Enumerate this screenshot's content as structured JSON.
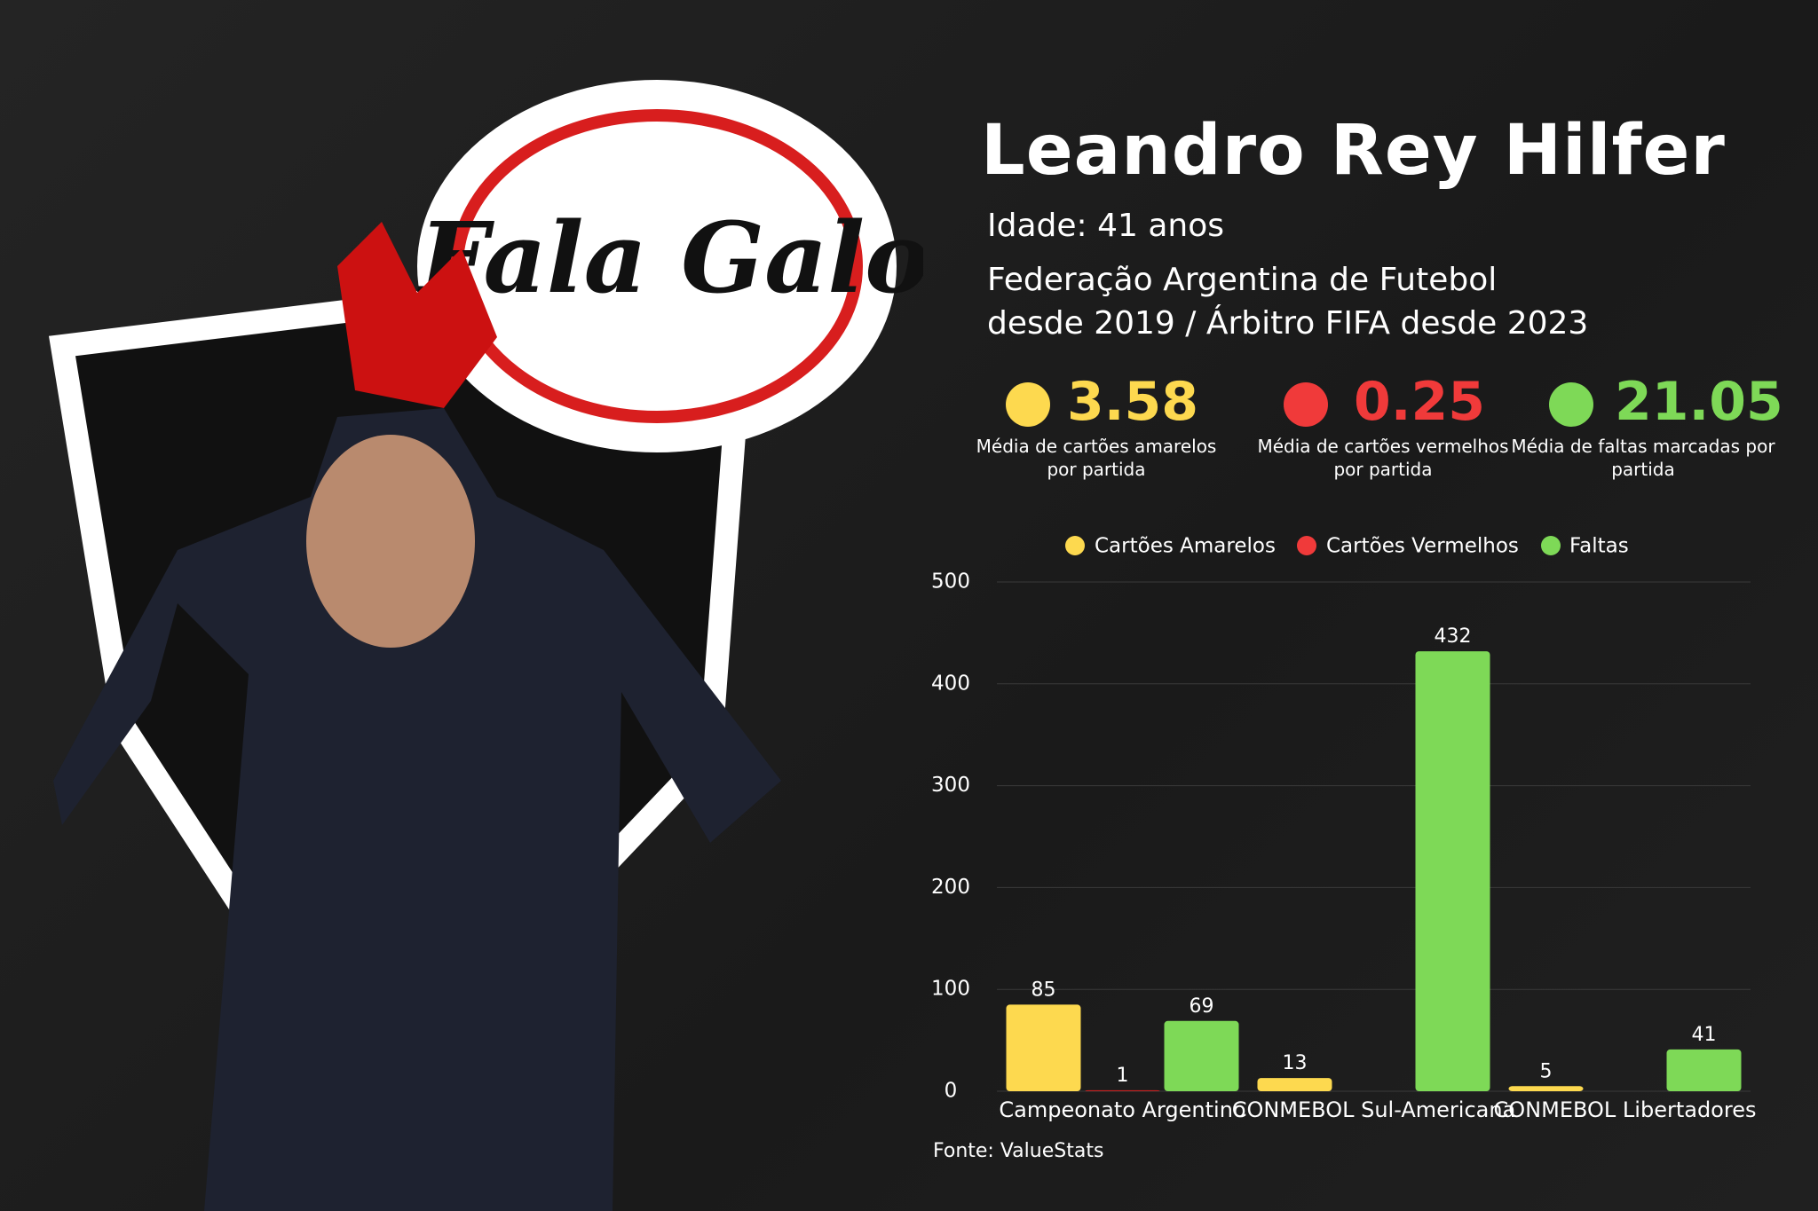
{
  "logo": {
    "text": "Fala Galo"
  },
  "header": {
    "name": "Leandro Rey Hilfer",
    "age": "Idade: 41 anos",
    "bio": [
      "Federação Argentina de Futebol",
      "desde 2019 / Árbitro FIFA desde 2023"
    ]
  },
  "stats": [
    {
      "value": 3.58,
      "caption": "Média de cartões amarelos por partida",
      "color": "#fdd94f"
    },
    {
      "value": 0.25,
      "caption": "Média de cartões vermelhos por partida",
      "color": "#f03a3a"
    },
    {
      "value": 21.05,
      "caption": "Média de faltas marcadas por partida",
      "color": "#7ed957"
    }
  ],
  "chart_data": {
    "type": "bar",
    "categories": [
      "Campeonato Argentino",
      "CONMEBOL Sul-Americana",
      "CONMEBOL Libertadores"
    ],
    "series": [
      {
        "name": "Cartões Amarelos",
        "color": "#fdd94f",
        "values": [
          85,
          13,
          5
        ]
      },
      {
        "name": "Cartões Vermelhos",
        "color": "#c62020",
        "legend_color": "#f03a3a",
        "values": [
          1,
          null,
          null
        ]
      },
      {
        "name": "Faltas",
        "color": "#7ed957",
        "values": [
          69,
          432,
          41
        ]
      }
    ],
    "ylim": [
      0,
      500
    ],
    "yticks": [
      0,
      100,
      200,
      300,
      400,
      500
    ],
    "grid": true,
    "source": "Fonte: ValueStats"
  }
}
